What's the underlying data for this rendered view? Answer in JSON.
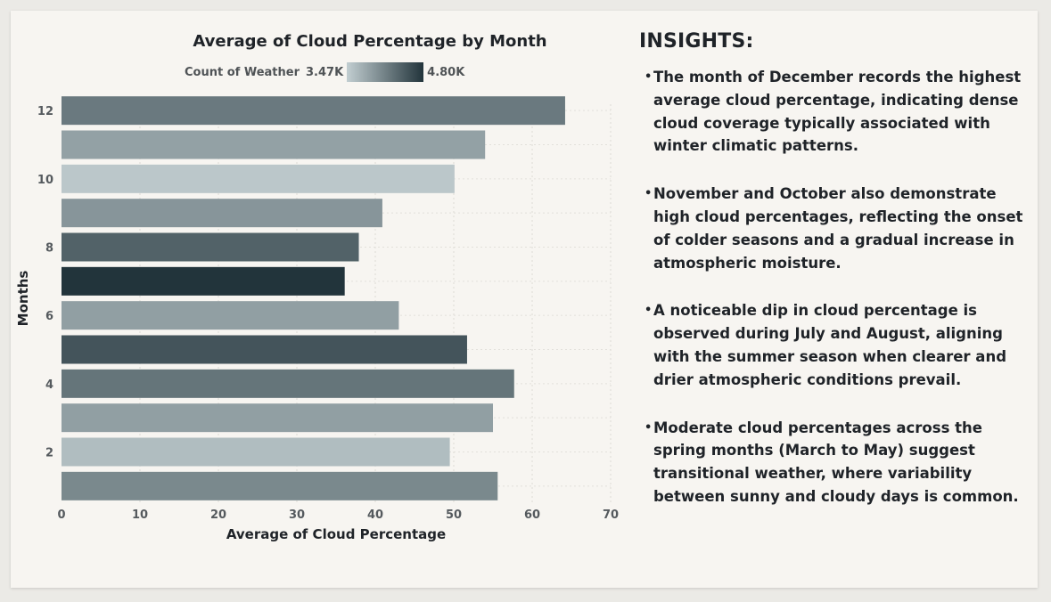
{
  "chart_data": {
    "type": "bar",
    "orientation": "horizontal",
    "title": "Average of Cloud Percentage by Month",
    "xlabel": "Average of Cloud Percentage",
    "ylabel": "Months",
    "xlim": [
      0,
      70
    ],
    "x_ticks": [
      "0",
      "10",
      "20",
      "30",
      "40",
      "50",
      "60",
      "70"
    ],
    "y_tick_labels": [
      "12",
      "10",
      "8",
      "6",
      "4",
      "2"
    ],
    "grid": true,
    "categories": [
      12,
      11,
      10,
      9,
      8,
      7,
      6,
      5,
      4,
      3,
      2,
      1
    ],
    "values": [
      64.2,
      54.0,
      50.1,
      40.9,
      37.9,
      36.1,
      43.0,
      51.7,
      57.7,
      55.0,
      49.5,
      55.6
    ],
    "color_measure": {
      "label": "Count of Weather",
      "min_label": "3.47K",
      "max_label": "4.80K",
      "min": 3470,
      "max": 4800,
      "min_color": "#c2ced1",
      "max_color": "#22343b",
      "values": [
        4200,
        3860,
        3530,
        3960,
        4400,
        4800,
        3880,
        4520,
        4240,
        3880,
        3620,
        4070
      ]
    }
  },
  "insights": {
    "heading": "INSIGHTS:",
    "items": [
      "The month of December records the highest average cloud percentage, indicating dense cloud coverage typically associated with winter climatic patterns.",
      "November and October also demonstrate high cloud percentages, reflecting the onset of colder seasons and a gradual increase in atmospheric moisture.",
      "A noticeable dip in cloud percentage is observed during July and August, aligning with the summer season when clearer and drier atmospheric conditions prevail.",
      "Moderate cloud percentages across the spring months (March to May) suggest transitional weather, where variability between sunny and cloudy days is common."
    ]
  }
}
